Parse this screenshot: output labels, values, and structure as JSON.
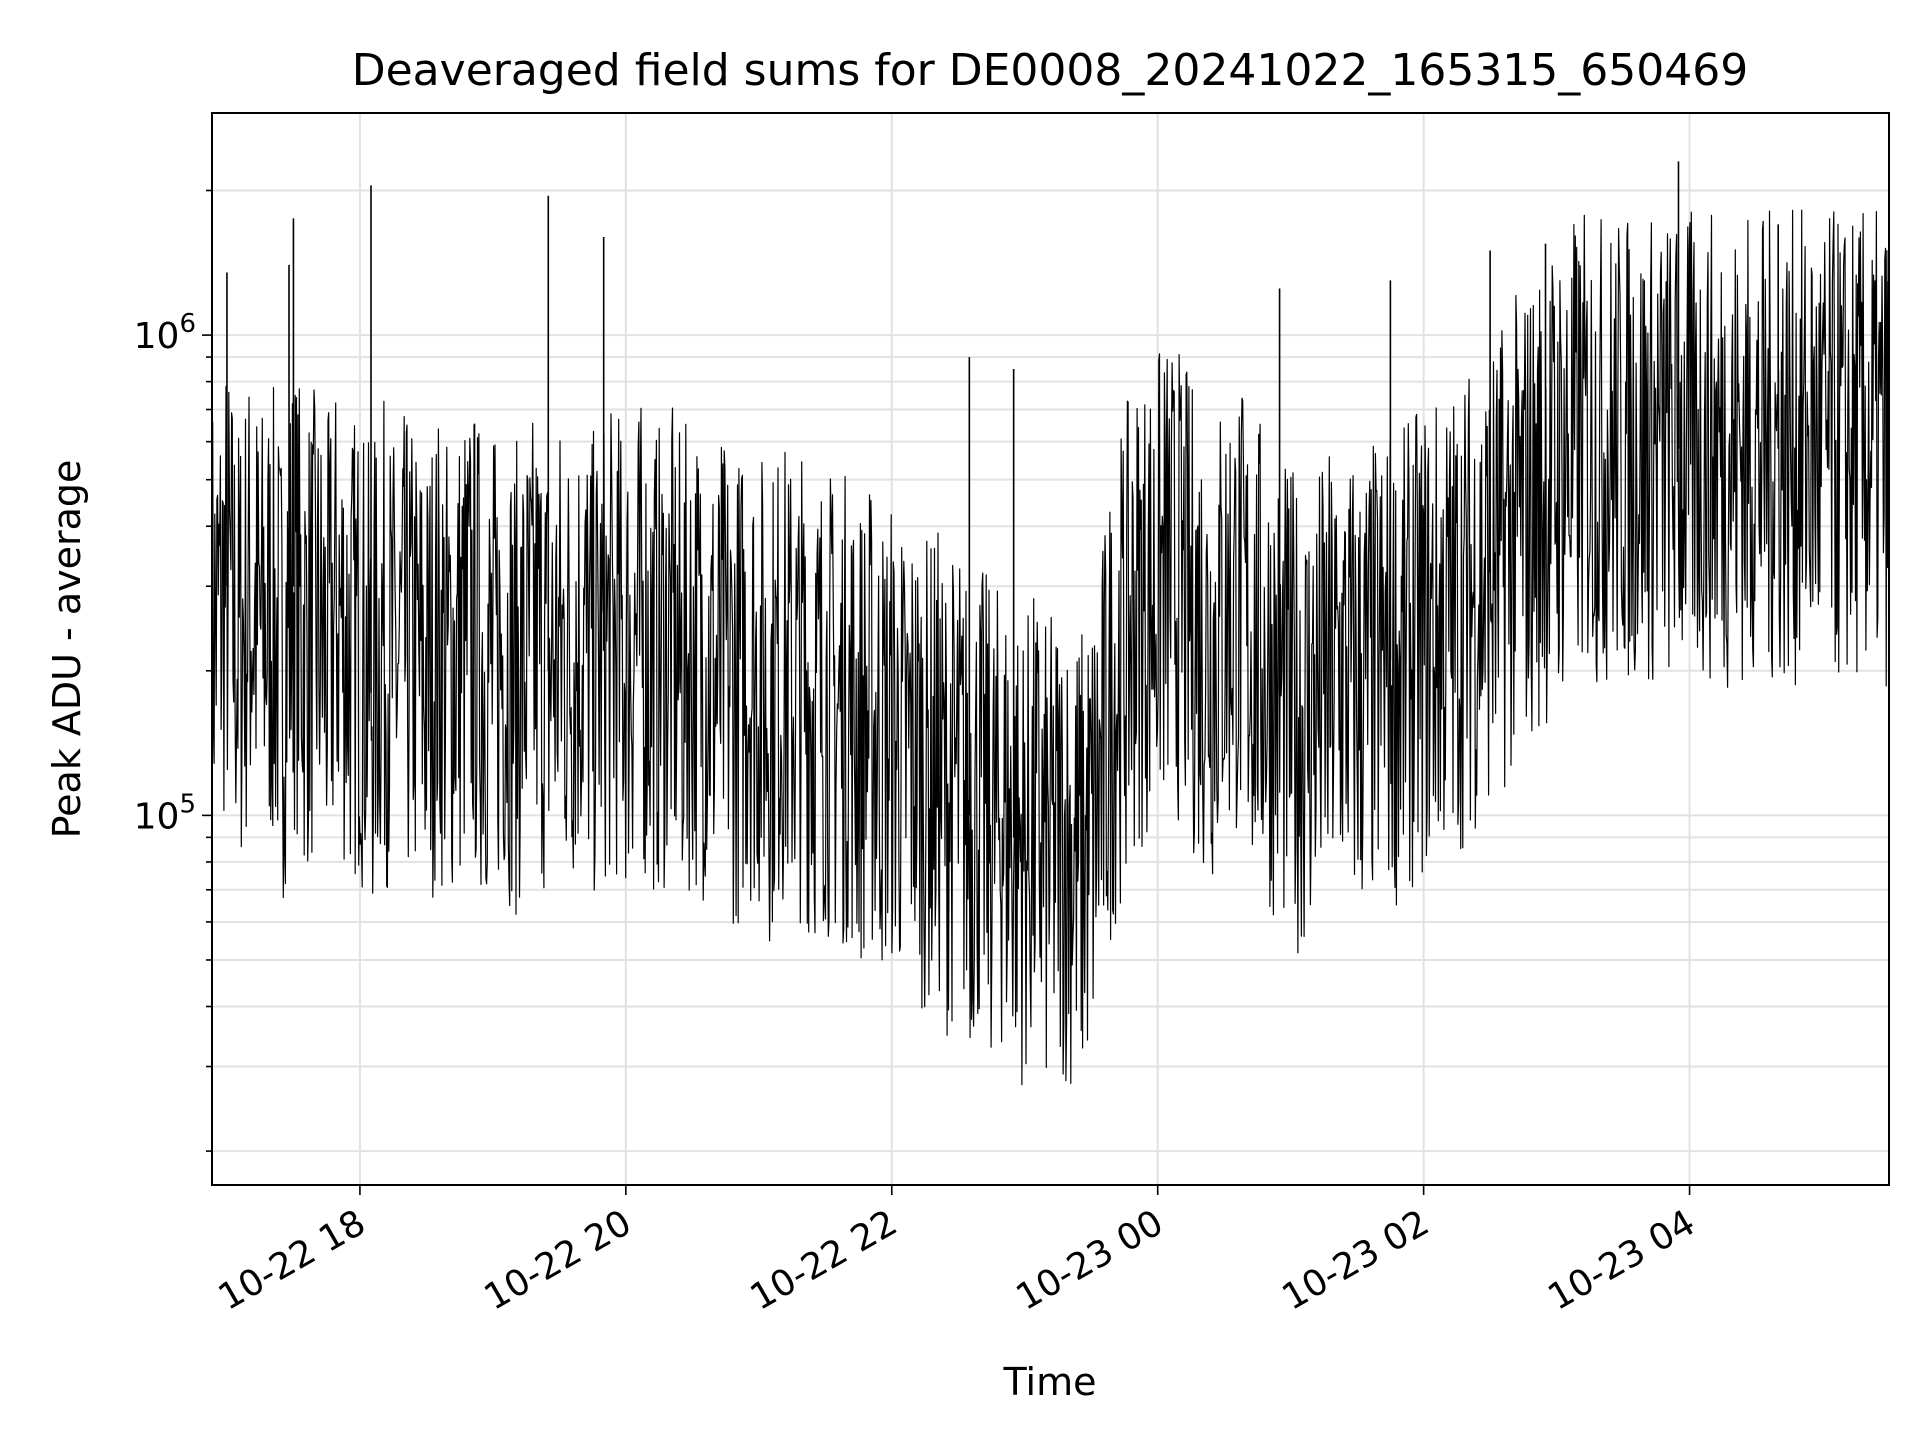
{
  "chart_data": {
    "type": "line",
    "title": "Deaveraged field sums for DE0008_20241022_165315_650469",
    "xlabel": "Time",
    "ylabel": "Peak ADU - average",
    "xlim": [
      "2024-10-22T16:53:15",
      "2024-10-23T05:30:00"
    ],
    "ylim": [
      17000,
      2900000
    ],
    "yscale": "log",
    "grid": true,
    "x_ticks": [
      {
        "t": "2024-10-22T18:00:00",
        "label": "10-22 18"
      },
      {
        "t": "2024-10-22T20:00:00",
        "label": "10-22 20"
      },
      {
        "t": "2024-10-22T22:00:00",
        "label": "10-22 22"
      },
      {
        "t": "2024-10-23T00:00:00",
        "label": "10-23 00"
      },
      {
        "t": "2024-10-23T02:00:00",
        "label": "10-23 02"
      },
      {
        "t": "2024-10-23T04:00:00",
        "label": "10-23 04"
      }
    ],
    "y_major_ticks": [
      {
        "value": 100000,
        "base": "10",
        "exp": "5"
      },
      {
        "value": 1000000,
        "base": "10",
        "exp": "6"
      }
    ],
    "line_color": "#000000",
    "series": [
      {
        "sampling_minutes": 5,
        "start": "2024-10-22T16:55:00",
        "values": [
          250000,
          300000,
          220000,
          280000,
          240000,
          260000,
          200000,
          300000,
          230000,
          250000,
          210000,
          270000,
          220000,
          230000,
          180000,
          240000,
          200000,
          220000,
          210000,
          190000,
          230000,
          200000,
          220000,
          240000,
          210000,
          200000,
          220000,
          190000,
          210000,
          230000,
          200000,
          220000,
          210000,
          240000,
          200000,
          220000,
          230000,
          210000,
          240000,
          220000,
          210000,
          230000,
          200000,
          220000,
          210000,
          190000,
          200000,
          180000,
          210000,
          190000,
          170000,
          200000,
          180000,
          190000,
          170000,
          180000,
          160000,
          170000,
          150000,
          160000,
          140000,
          150000,
          130000,
          140000,
          120000,
          130000,
          110000,
          120000,
          100000,
          110000,
          95000,
          100000,
          90000,
          85000,
          95000,
          80000,
          90000,
          85000,
          80000,
          90000,
          120000,
          180000,
          220000,
          260000,
          280000,
          300000,
          320000,
          300000,
          260000,
          240000,
          220000,
          260000,
          280000,
          240000,
          220000,
          200000,
          180000,
          170000,
          160000,
          170000,
          180000,
          190000,
          200000,
          180000,
          190000,
          200000,
          210000,
          200000,
          220000,
          230000,
          240000,
          250000,
          260000,
          280000,
          300000,
          320000,
          340000,
          380000,
          420000,
          450000,
          480000,
          520000,
          550000,
          580000
        ]
      }
    ],
    "peaks": [
      {
        "t": "2024-10-22T17:00:00",
        "value": 1350000
      },
      {
        "t": "2024-10-22T17:30:00",
        "value": 1750000
      },
      {
        "t": "2024-10-22T17:28:00",
        "value": 1400000
      },
      {
        "t": "2024-10-22T18:05:00",
        "value": 2050000
      },
      {
        "t": "2024-10-22T19:25:00",
        "value": 1950000
      },
      {
        "t": "2024-10-22T19:50:00",
        "value": 1600000
      },
      {
        "t": "2024-10-22T22:35:00",
        "value": 900000
      },
      {
        "t": "2024-10-22T22:55:00",
        "value": 850000
      },
      {
        "t": "2024-10-23T00:55:00",
        "value": 1250000
      },
      {
        "t": "2024-10-23T01:45:00",
        "value": 1300000
      },
      {
        "t": "2024-10-23T02:30:00",
        "value": 1500000
      },
      {
        "t": "2024-10-23T02:55:00",
        "value": 1550000
      },
      {
        "t": "2024-10-23T03:55:00",
        "value": 2300000
      },
      {
        "t": "2024-10-23T04:40:00",
        "value": 1700000
      }
    ]
  }
}
